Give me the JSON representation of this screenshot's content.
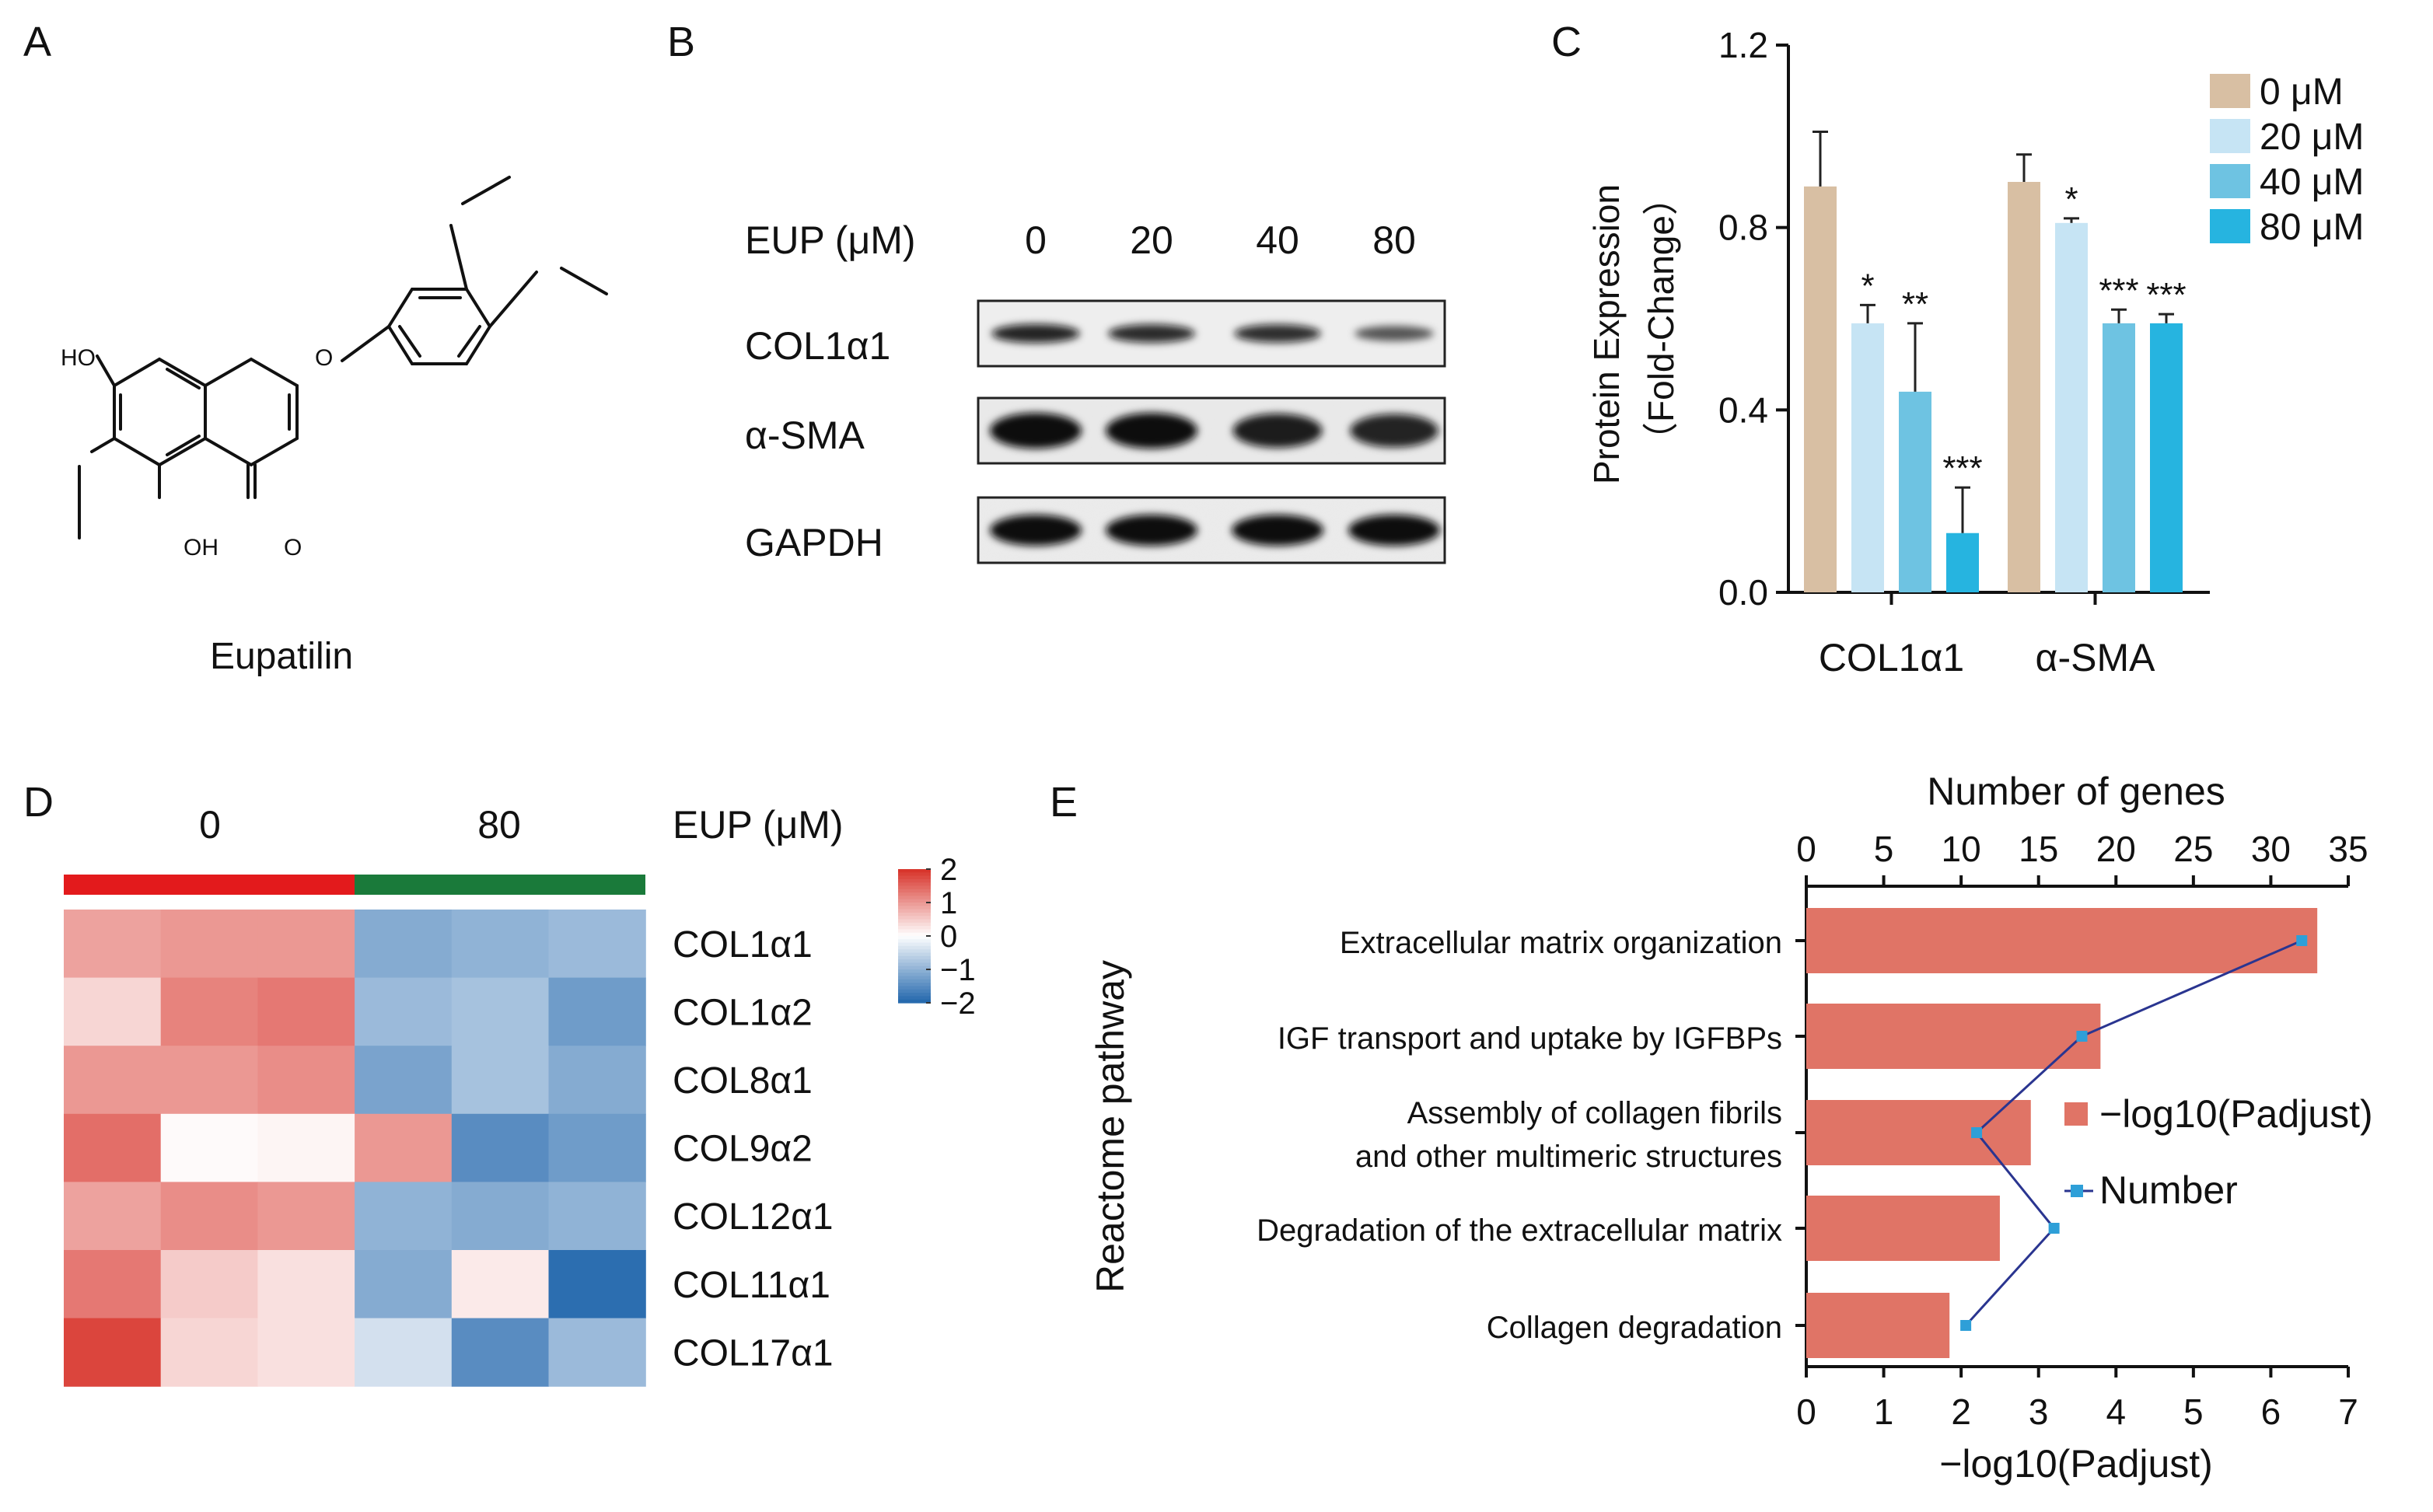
{
  "panels": {
    "a": "A",
    "b": "B",
    "c": "C",
    "d": "D",
    "e": "E"
  },
  "panel_a": {
    "compound_name": "Eupatilin",
    "atom_labels": {
      "ho": "HO",
      "oh": "OH",
      "o_carbonyl": "O",
      "o_ring": "O"
    }
  },
  "panel_b": {
    "header_label": "EUP (μM)",
    "doses": [
      "0",
      "20",
      "40",
      "80"
    ],
    "rows": [
      {
        "name": "COL1α1",
        "intensities": [
          0.85,
          0.8,
          0.78,
          0.45
        ]
      },
      {
        "name": "α-SMA",
        "intensities": [
          1.0,
          1.0,
          0.9,
          0.85
        ]
      },
      {
        "name": "GAPDH",
        "intensities": [
          1.0,
          1.0,
          1.0,
          1.0
        ]
      }
    ]
  },
  "panel_d": {
    "dose_label": "EUP (μM)",
    "groups": [
      {
        "label": "0",
        "color": "#e31a1c"
      },
      {
        "label": "80",
        "color": "#1a7a3a"
      }
    ],
    "colorbar_ticks": [
      "2",
      "1",
      "0",
      "−1",
      "−2"
    ],
    "heat_colors": {
      "high": "#d73027",
      "mid": "#ffffff",
      "low": "#2166ac"
    }
  },
  "chart_data": [
    {
      "type": "bar",
      "ylabel": "Protein Expression",
      "ylabel2": "（Fold-Change）",
      "ylim": [
        0,
        1.2
      ],
      "yticks": [
        "0.0",
        "0.4",
        "0.8",
        "1.2"
      ],
      "categories": [
        "COL1α1",
        "α-SMA"
      ],
      "series": [
        {
          "name": "0   μM",
          "color": "#d8bfa3",
          "values": [
            0.89,
            0.9
          ],
          "errors": [
            0.12,
            0.06
          ],
          "significance": [
            "",
            ""
          ]
        },
        {
          "name": "20 μM",
          "color": "#c6e4f4",
          "values": [
            0.59,
            0.81
          ],
          "errors": [
            0.04,
            0.01
          ],
          "significance": [
            "*",
            "*"
          ]
        },
        {
          "name": "40 μM",
          "color": "#6ec3e2",
          "values": [
            0.44,
            0.59
          ],
          "errors": [
            0.15,
            0.03
          ],
          "significance": [
            "**",
            "***"
          ]
        },
        {
          "name": "80 μM",
          "color": "#26b4e0",
          "values": [
            0.13,
            0.59
          ],
          "errors": [
            0.1,
            0.02
          ],
          "significance": [
            "***",
            "***"
          ]
        }
      ],
      "legend_position": "top-right"
    },
    {
      "type": "heatmap",
      "columns": [
        "0",
        "0",
        "0",
        "80",
        "80",
        "80"
      ],
      "rows": [
        "COL1α1",
        "COL1α2",
        "COL8α1",
        "COL9α2",
        "COL12α1",
        "COL11α1",
        "COL17α1"
      ],
      "values": [
        [
          0.9,
          1.0,
          1.0,
          -1.1,
          -1.0,
          -0.9
        ],
        [
          0.4,
          1.2,
          1.3,
          -0.9,
          -0.8,
          -1.3
        ],
        [
          1.0,
          1.0,
          1.1,
          -1.2,
          -0.8,
          -1.1
        ],
        [
          1.4,
          0.05,
          0.1,
          1.0,
          -1.5,
          -1.3
        ],
        [
          0.9,
          1.1,
          1.0,
          -1.0,
          -1.1,
          -1.0
        ],
        [
          1.3,
          0.5,
          0.3,
          -1.1,
          0.2,
          -1.9
        ],
        [
          1.8,
          0.4,
          0.3,
          -0.4,
          -1.5,
          -0.9
        ]
      ],
      "range": [
        -2,
        2
      ]
    },
    {
      "type": "bar",
      "orientation": "horizontal",
      "ylabel": "Reactome pathway",
      "xlabel": "−log10(Padjust)",
      "x2label": "Number of genes",
      "xlim": [
        0,
        7
      ],
      "x2lim": [
        0,
        35
      ],
      "xticks": [
        "0",
        "1",
        "2",
        "3",
        "4",
        "5",
        "6",
        "7"
      ],
      "x2ticks": [
        "0",
        "5",
        "10",
        "15",
        "20",
        "25",
        "30",
        "35"
      ],
      "categories": [
        [
          "Extracellular matrix organization"
        ],
        [
          "IGF transport and uptake by IGFBPs"
        ],
        [
          "Assembly of collagen fibrils",
          "and other multimeric structures"
        ],
        [
          "Degradation of the extracellular matrix"
        ],
        [
          "Collagen degradation"
        ]
      ],
      "series": [
        {
          "name": "−log10(Padjust)",
          "type": "bar",
          "color": "#e07466",
          "values": [
            6.6,
            3.8,
            2.9,
            2.5,
            1.85
          ]
        },
        {
          "name": "Number",
          "type": "line",
          "color": "#2a3590",
          "marker_color": "#2e9fd8",
          "values": [
            32,
            17.8,
            11,
            16,
            10.3
          ]
        }
      ],
      "legend_position": "right"
    }
  ]
}
